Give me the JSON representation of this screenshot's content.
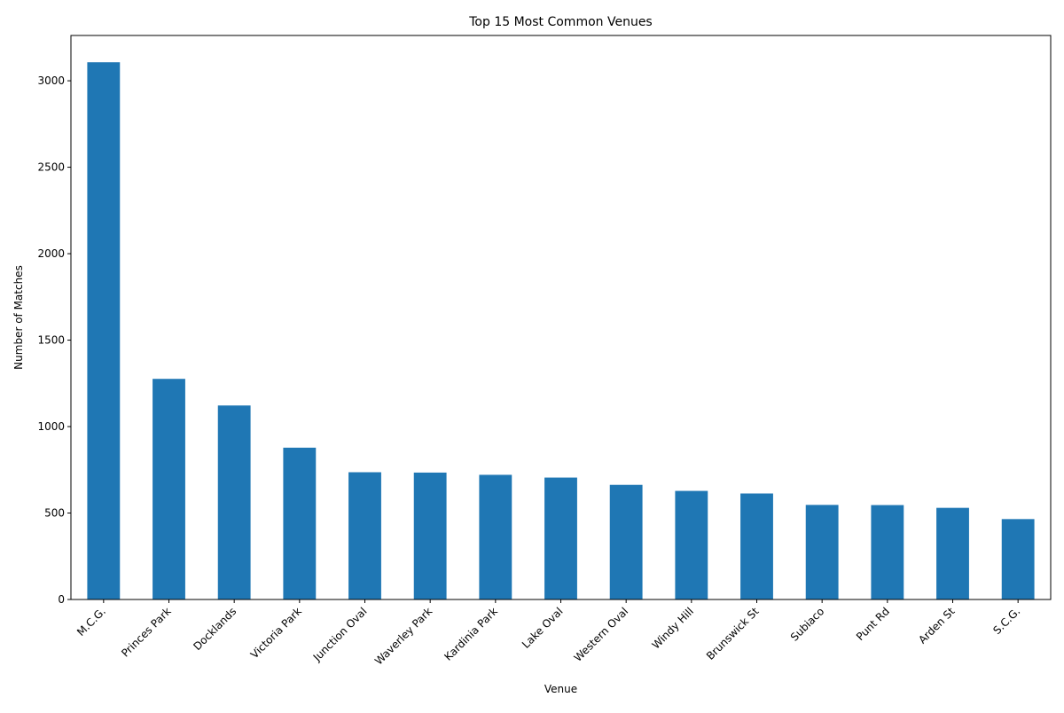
{
  "chart_data": {
    "type": "bar",
    "title": "Top 15 Most Common Venues",
    "xlabel": "Venue",
    "ylabel": "Number of Matches",
    "categories": [
      "M.C.G.",
      "Princes Park",
      "Docklands",
      "Victoria Park",
      "Junction Oval",
      "Waverley Park",
      "Kardinia Park",
      "Lake Oval",
      "Western Oval",
      "Windy Hill",
      "Brunswick St",
      "Subiaco",
      "Punt Rd",
      "Arden St",
      "S.C.G."
    ],
    "values": [
      3107,
      1276,
      1122,
      878,
      736,
      734,
      721,
      705,
      663,
      628,
      613,
      547,
      546,
      530,
      465
    ],
    "ylim": [
      0,
      3262
    ],
    "yticks": [
      0,
      500,
      1000,
      1500,
      2000,
      2500,
      3000
    ],
    "grid": false,
    "legend": "none",
    "bar_color": "#1f77b4"
  }
}
